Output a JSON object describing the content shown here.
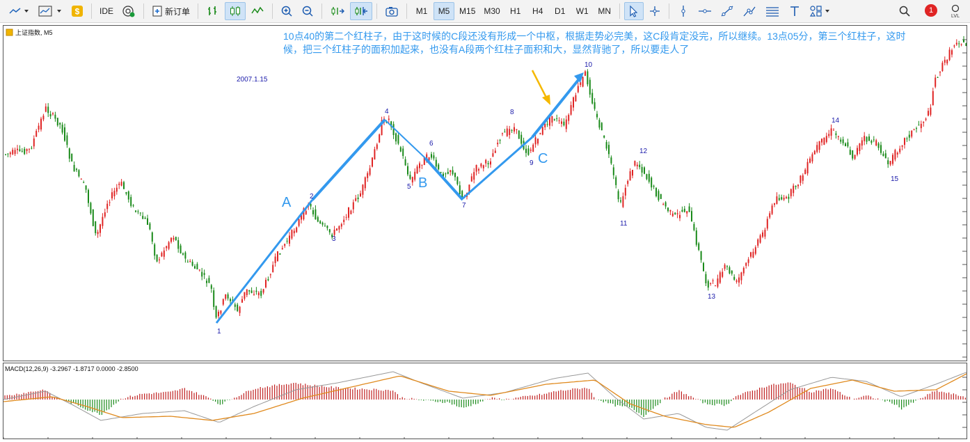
{
  "toolbar": {
    "ide_label": "IDE",
    "new_order_label": "新订单",
    "timeframes": [
      "M1",
      "M5",
      "M15",
      "M30",
      "H1",
      "H4",
      "D1",
      "W1",
      "MN"
    ],
    "active_timeframe": "M5",
    "notification_count": "1",
    "notification_color": "#e02424",
    "highlight_color": "#cfe3f7"
  },
  "chart": {
    "symbol_label": "上证指数, M5",
    "date_label": "2007.1.15",
    "annotation": "10点40的第二个红柱子，由于这时候的C段还没有形成一个中枢，根据走势必完美，这C段肯定没完，所以继续。13点05分，第三个红柱子，这时候，把三个红柱子的面积加起来，也没有A段两个红柱子面积和大，显然背驰了，所以要走人了",
    "segment_labels": {
      "a": "A",
      "b": "B",
      "c": "C"
    },
    "up_color": "#e02424",
    "down_color": "#1a8a1a",
    "trend_color": "#3399ee",
    "arrow_color": "#f5b800",
    "point_labels": [
      "1",
      "2",
      "3",
      "4",
      "5",
      "6",
      "7",
      "8",
      "9",
      "10",
      "11",
      "12",
      "13",
      "14",
      "15"
    ]
  },
  "macd": {
    "label": "MACD(12,26,9) -3.2967 -1.8717 0.0000 -2.8500",
    "macd_line_color": "#999999",
    "signal_line_color": "#e08a1e"
  }
}
